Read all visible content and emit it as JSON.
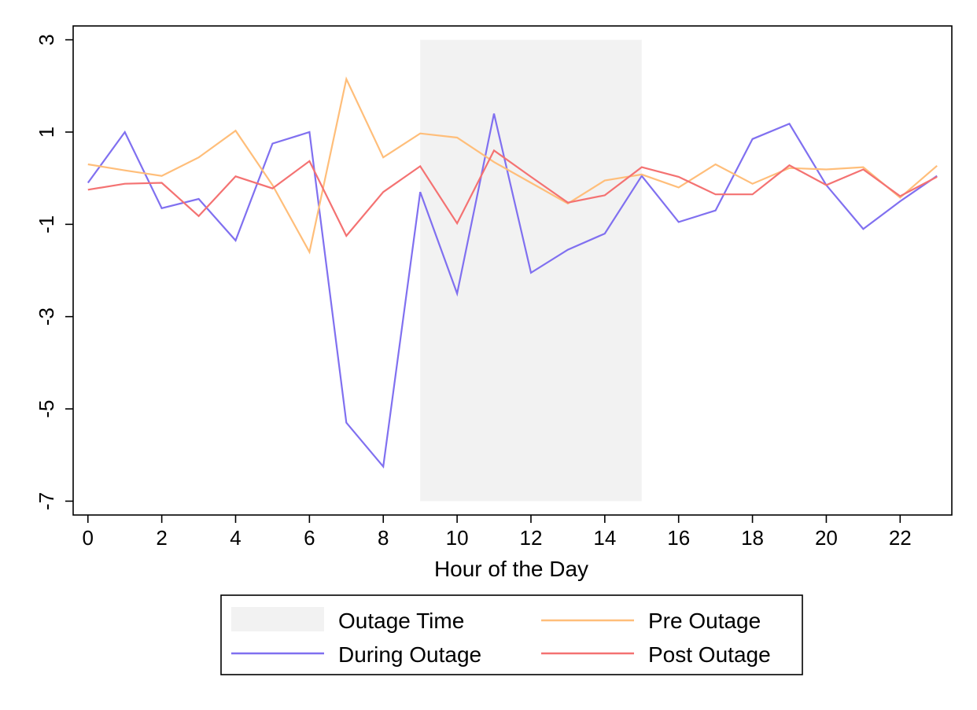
{
  "chart_data": {
    "type": "line",
    "title": "",
    "xlabel": "Hour of the Day",
    "ylabel": "",
    "x": [
      0,
      1,
      2,
      3,
      4,
      5,
      6,
      7,
      8,
      9,
      10,
      11,
      12,
      13,
      14,
      15,
      16,
      17,
      18,
      19,
      20,
      21,
      22,
      23
    ],
    "xlim": [
      -0.4,
      23.4
    ],
    "ylim": [
      -7.3,
      3.3
    ],
    "x_ticks": [
      0,
      2,
      4,
      6,
      8,
      10,
      12,
      14,
      16,
      18,
      20,
      22
    ],
    "y_ticks": [
      3,
      1,
      -1,
      -3,
      -5,
      -7
    ],
    "x_tick_labels": [
      "0",
      "2",
      "4",
      "6",
      "8",
      "10",
      "12",
      "14",
      "16",
      "18",
      "20",
      "22"
    ],
    "y_tick_labels": [
      "3",
      "1",
      "-1",
      "-3",
      "-5",
      "-7"
    ],
    "grid": false,
    "legend_position": "bottom",
    "shaded_region": {
      "label": "Outage Time",
      "x_start": 9,
      "x_end": 15,
      "y_start": -7,
      "y_end": 3,
      "color": "#f2f2f2"
    },
    "series": [
      {
        "name": "During Outage",
        "color": "#8070f0",
        "values": [
          -0.1,
          1.0,
          -0.65,
          -0.45,
          -1.35,
          0.75,
          1.0,
          -5.3,
          -6.25,
          -0.3,
          -2.5,
          1.4,
          -2.05,
          -1.55,
          -1.2,
          0.05,
          -0.95,
          -0.7,
          0.85,
          1.18,
          -0.15,
          -1.1,
          -0.5,
          0.05
        ]
      },
      {
        "name": "Pre Outage",
        "color": "#ffbe7a",
        "values": [
          0.3,
          0.17,
          0.05,
          0.45,
          1.03,
          -0.15,
          -1.6,
          2.15,
          0.45,
          0.97,
          0.88,
          0.35,
          -0.1,
          -0.55,
          -0.05,
          0.08,
          -0.2,
          0.3,
          -0.12,
          0.22,
          0.19,
          0.24,
          -0.42,
          0.27
        ]
      },
      {
        "name": "Post Outage",
        "color": "#f47272",
        "values": [
          -0.25,
          -0.12,
          -0.1,
          -0.82,
          0.04,
          -0.22,
          0.37,
          -1.25,
          -0.3,
          0.26,
          -0.98,
          0.6,
          0.03,
          -0.53,
          -0.37,
          0.24,
          0.03,
          -0.35,
          -0.35,
          0.28,
          -0.15,
          0.19,
          -0.39,
          0.03
        ]
      }
    ]
  }
}
